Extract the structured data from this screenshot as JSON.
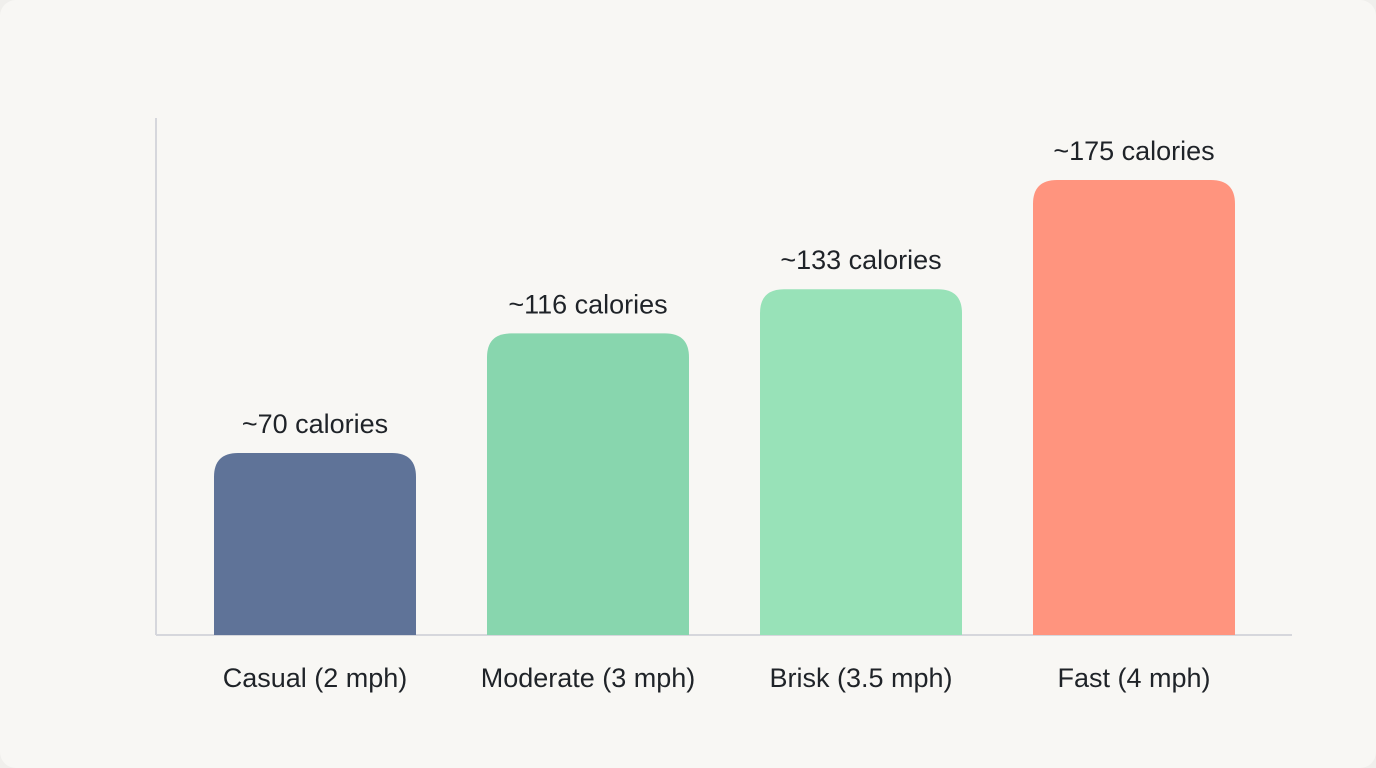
{
  "chart_data": {
    "type": "bar",
    "title": "",
    "xlabel": "",
    "ylabel": "",
    "categories": [
      "Casual (2 mph)",
      "Moderate (3 mph)",
      "Brisk (3.5 mph)",
      "Fast (4 mph)"
    ],
    "values": [
      70,
      116,
      133,
      175
    ],
    "value_labels": [
      "~70 calories",
      "~116 calories",
      "~133 calories",
      "~175 calories"
    ],
    "colors": [
      "#5f7398",
      "#88d6ae",
      "#98e2b8",
      "#ff947e"
    ],
    "ylim": [
      0,
      200
    ],
    "grid": false,
    "legend": "none"
  }
}
